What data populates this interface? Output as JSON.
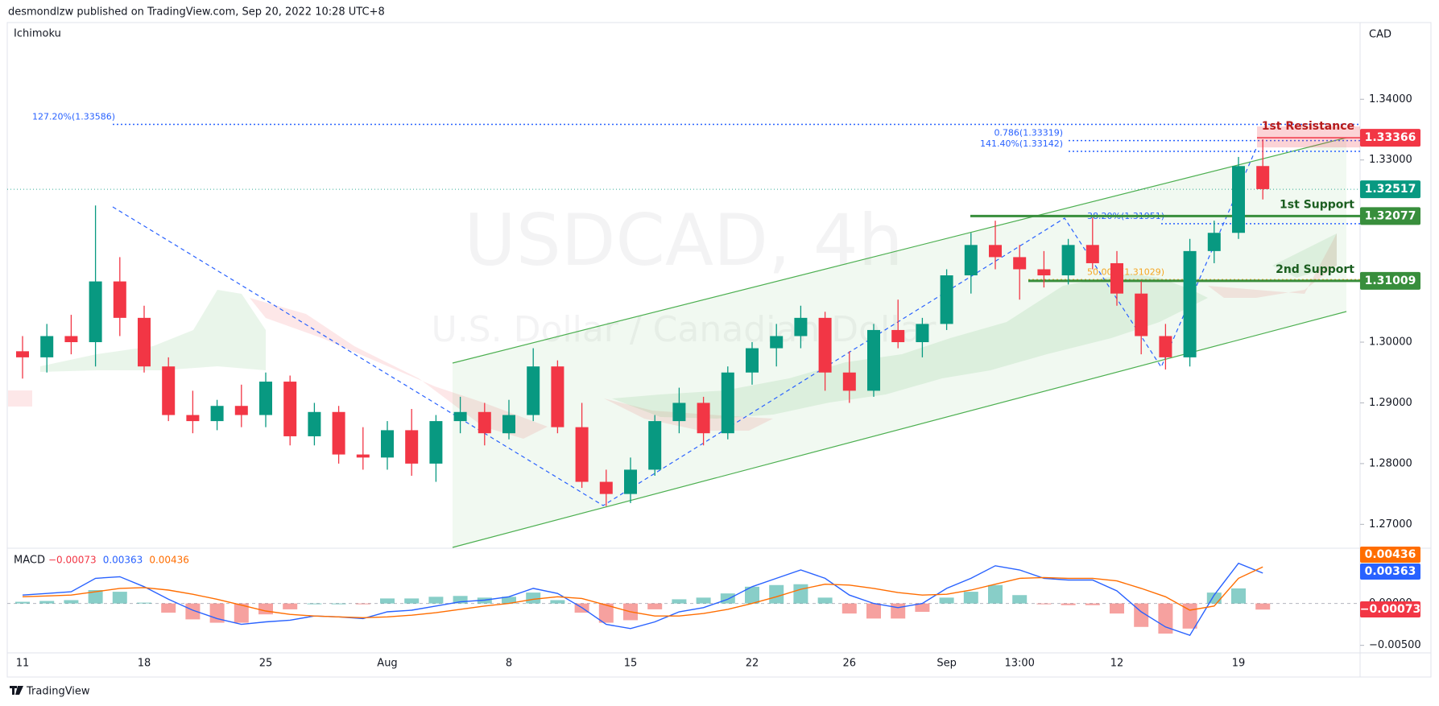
{
  "header": {
    "byline": "desmondlzw published on TradingView.com, Sep 20, 2022 10:28 UTC+8",
    "indicator": "Ichimoku",
    "currency": "CAD"
  },
  "watermark": {
    "symbol": "USDCAD, 4h",
    "name": "U.S. Dollar / Canadian Dollar"
  },
  "footer": {
    "brand": "TradingView"
  },
  "chart_data": [
    {
      "type": "candlestick",
      "categories": [
        "11",
        null,
        null,
        null,
        null,
        "18",
        null,
        null,
        null,
        null,
        "25",
        null,
        null,
        null,
        null,
        "Aug",
        null,
        null,
        null,
        null,
        "8",
        null,
        null,
        null,
        null,
        "15",
        null,
        null,
        null,
        null,
        "22",
        null,
        null,
        null,
        "26",
        null,
        null,
        null,
        "Sep",
        null,
        null,
        "13:00",
        null,
        null,
        null,
        "12",
        null,
        null,
        null,
        null,
        "19",
        null
      ],
      "open": [
        1.2985,
        1.2975,
        1.301,
        1.3,
        1.31,
        1.304,
        1.296,
        1.288,
        1.287,
        1.2895,
        1.288,
        1.2935,
        1.2845,
        1.2885,
        1.2815,
        1.281,
        1.2855,
        1.28,
        1.287,
        1.2885,
        1.285,
        1.288,
        1.296,
        1.286,
        1.277,
        1.275,
        1.279,
        1.287,
        1.29,
        1.285,
        1.295,
        1.299,
        1.301,
        1.304,
        1.295,
        1.292,
        1.302,
        1.3,
        1.303,
        1.311,
        1.316,
        1.314,
        1.312,
        1.311,
        1.316,
        1.313,
        1.308,
        1.301,
        1.2975,
        1.315,
        1.318,
        1.329
      ],
      "high": [
        1.301,
        1.303,
        1.3045,
        1.3225,
        1.314,
        1.306,
        1.2975,
        1.292,
        1.2905,
        1.293,
        1.295,
        1.2945,
        1.29,
        1.2895,
        1.286,
        1.287,
        1.289,
        1.288,
        1.291,
        1.29,
        1.2905,
        1.299,
        1.297,
        1.29,
        1.279,
        1.281,
        1.288,
        1.2925,
        1.291,
        1.296,
        1.3,
        1.303,
        1.306,
        1.305,
        1.2985,
        1.303,
        1.307,
        1.304,
        1.312,
        1.318,
        1.32,
        1.316,
        1.315,
        1.317,
        1.3205,
        1.315,
        1.31,
        1.303,
        1.317,
        1.32,
        1.3305,
        1.3334
      ],
      "low": [
        1.294,
        1.295,
        1.298,
        1.296,
        1.301,
        1.295,
        1.287,
        1.285,
        1.2855,
        1.286,
        1.286,
        1.283,
        1.283,
        1.28,
        1.279,
        1.279,
        1.278,
        1.277,
        1.285,
        1.283,
        1.284,
        1.287,
        1.285,
        1.276,
        1.273,
        1.2735,
        1.278,
        1.285,
        1.283,
        1.284,
        1.293,
        1.296,
        1.299,
        1.292,
        1.29,
        1.291,
        1.299,
        1.2975,
        1.302,
        1.308,
        1.312,
        1.307,
        1.309,
        1.3095,
        1.312,
        1.306,
        1.298,
        1.2955,
        1.296,
        1.313,
        1.317,
        1.3235
      ],
      "close": [
        1.2975,
        1.301,
        1.3,
        1.31,
        1.304,
        1.296,
        1.288,
        1.287,
        1.2895,
        1.288,
        1.2935,
        1.2845,
        1.2885,
        1.2815,
        1.281,
        1.2855,
        1.28,
        1.287,
        1.2885,
        1.285,
        1.288,
        1.296,
        1.286,
        1.277,
        1.275,
        1.279,
        1.287,
        1.29,
        1.285,
        1.295,
        1.299,
        1.301,
        1.304,
        1.295,
        1.292,
        1.302,
        1.3,
        1.303,
        1.311,
        1.316,
        1.314,
        1.312,
        1.311,
        1.316,
        1.313,
        1.308,
        1.301,
        1.2975,
        1.315,
        1.318,
        1.329,
        1.3252
      ],
      "up_color": "#089981",
      "down_color": "#f23645",
      "ylim": [
        1.2662,
        1.3521
      ],
      "yticks": [
        {
          "value": 1.27,
          "label": "1.27000"
        },
        {
          "value": 1.28,
          "label": "1.28000"
        },
        {
          "value": 1.29,
          "label": "1.29000"
        },
        {
          "value": 1.3,
          "label": "1.30000"
        },
        {
          "value": 1.31,
          "label": "1.31000"
        },
        {
          "value": 1.32,
          "label": "1.32000"
        },
        {
          "value": 1.33,
          "label": "1.33000"
        },
        {
          "value": 1.34,
          "label": "1.34000"
        }
      ],
      "last_price": 1.32517,
      "last_price_color": "#089981",
      "levels": [
        {
          "name": "1st Resistance",
          "value": 1.33366,
          "color": "#f23645"
        },
        {
          "name": "1st Support",
          "value": 1.32077,
          "color": "#388e3c"
        },
        {
          "name": "2nd Support",
          "value": 1.31009,
          "color": "#388e3c"
        }
      ],
      "annotations": [
        {
          "text": "127.20%(1.33586)",
          "value": 1.33586,
          "color": "#2962ff"
        },
        {
          "text": "0.786(1.33319)",
          "value": 1.33319,
          "color": "#2962ff"
        },
        {
          "text": "141.40%(1.33142)",
          "value": 1.33142,
          "color": "#2962ff"
        },
        {
          "text": "38.20%(1.31951)",
          "value": 1.31951,
          "color": "#2962ff"
        },
        {
          "text": "50.00%(1.31029)",
          "value": 1.31029,
          "color": "#f5a623"
        }
      ]
    },
    {
      "type": "macd",
      "title": "MACD",
      "legend": [
        {
          "text": "−0.00073",
          "color": "#f23645"
        },
        {
          "text": "0.00363",
          "color": "#2962ff"
        },
        {
          "text": "0.00436",
          "color": "#ff6d00"
        }
      ],
      "histogram": [
        0.0002,
        0.0003,
        0.0004,
        0.0016,
        0.0014,
        0.0001,
        -0.0011,
        -0.0019,
        -0.0023,
        -0.0023,
        -0.0013,
        -0.0007,
        0.0,
        0.0,
        -0.0001,
        0.0006,
        0.0006,
        0.0008,
        0.0009,
        0.0007,
        0.0008,
        0.0013,
        0.0004,
        -0.0011,
        -0.0023,
        -0.002,
        -0.0007,
        0.0005,
        0.0007,
        0.0012,
        0.002,
        0.0022,
        0.0023,
        0.0007,
        -0.0012,
        -0.0018,
        -0.0018,
        -0.001,
        0.0007,
        0.0014,
        0.0022,
        0.001,
        -0.0001,
        -0.0002,
        -0.0002,
        -0.0012,
        -0.0028,
        -0.0036,
        -0.003,
        0.0013,
        0.0018,
        -0.00073
      ],
      "macd": [
        0.001,
        0.0012,
        0.0014,
        0.003,
        0.0032,
        0.002,
        0.0005,
        -0.0008,
        -0.0018,
        -0.0025,
        -0.0022,
        -0.002,
        -0.0015,
        -0.0016,
        -0.0018,
        -0.001,
        -0.0008,
        -0.0003,
        0.0002,
        0.0004,
        0.0008,
        0.0018,
        0.0012,
        -0.0005,
        -0.0025,
        -0.003,
        -0.0022,
        -0.001,
        -0.0005,
        0.0005,
        0.002,
        0.003,
        0.004,
        0.003,
        0.001,
        0.0,
        -0.0005,
        0.0,
        0.0018,
        0.003,
        0.0045,
        0.004,
        0.003,
        0.0028,
        0.0028,
        0.0015,
        -0.001,
        -0.0028,
        -0.0038,
        0.001,
        0.0048,
        0.00363
      ],
      "signal": [
        0.0008,
        0.0009,
        0.001,
        0.0014,
        0.0018,
        0.0019,
        0.0016,
        0.0011,
        0.0005,
        -0.0002,
        -0.0009,
        -0.0013,
        -0.0015,
        -0.0016,
        -0.0017,
        -0.0016,
        -0.0014,
        -0.0011,
        -0.0007,
        -0.0003,
        0.0,
        0.0005,
        0.0008,
        0.0006,
        -0.0002,
        -0.001,
        -0.0015,
        -0.0015,
        -0.0012,
        -0.0007,
        0.0,
        0.0008,
        0.0017,
        0.0023,
        0.0022,
        0.0018,
        0.0013,
        0.001,
        0.0011,
        0.0016,
        0.0023,
        0.003,
        0.0031,
        0.003,
        0.003,
        0.0027,
        0.0018,
        0.0008,
        -0.0008,
        -0.0003,
        0.003,
        0.00436
      ],
      "macd_color": "#2962ff",
      "signal_color": "#ff6d00",
      "up_color": "#26a69a",
      "down_color": "#ef5350",
      "ylim": [
        -0.0059,
        0.0066
      ],
      "yticks": [
        {
          "value": -0.005,
          "label": "−0.00500"
        },
        {
          "value": 0,
          "label": "0.00000"
        }
      ]
    }
  ]
}
